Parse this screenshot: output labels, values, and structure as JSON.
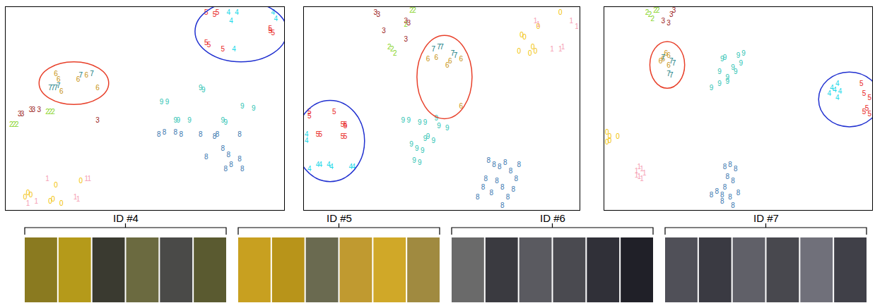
{
  "chart_data": [
    {
      "type": "scatter",
      "marker": "text",
      "tick_labels": false,
      "grid": false,
      "xlim": [
        0,
        100
      ],
      "ylim": [
        0,
        100
      ],
      "series": [
        {
          "name": "0",
          "color": "#f2c200",
          "x": [
            7,
            8,
            9,
            18,
            16,
            17,
            27,
            20
          ],
          "y": [
            6,
            8,
            7,
            12,
            4,
            5,
            14,
            3
          ]
        },
        {
          "name": "1",
          "color": "#f5a0b4",
          "x": [
            8,
            15,
            25,
            26,
            29,
            30,
            11
          ],
          "y": [
            3,
            15,
            6,
            5,
            15,
            15,
            4
          ]
        },
        {
          "name": "2",
          "color": "#88d42a",
          "x": [
            2,
            3,
            4,
            15,
            16,
            17
          ],
          "y": [
            42,
            42,
            42,
            48,
            48,
            48
          ]
        },
        {
          "name": "3",
          "color": "#9b1c1c",
          "x": [
            5,
            6,
            9,
            10,
            12,
            33
          ],
          "y": [
            47,
            47,
            49,
            49,
            49,
            44
          ]
        },
        {
          "name": "4",
          "color": "#1ad8e8",
          "x": [
            80,
            83,
            81,
            82,
            96,
            97
          ],
          "y": [
            97,
            97,
            93,
            79,
            97,
            94
          ]
        },
        {
          "name": "5",
          "color": "#e81c1c",
          "x": [
            72,
            73,
            95,
            96,
            72,
            75,
            76,
            78,
            95
          ],
          "y": [
            82,
            81,
            88,
            87,
            97,
            96,
            97,
            79,
            89
          ]
        },
        {
          "name": "6",
          "color": "#c89414",
          "x": [
            18,
            19,
            26,
            20,
            33,
            29
          ],
          "y": [
            67,
            64,
            64,
            58,
            60,
            66
          ]
        },
        {
          "name": "7",
          "color": "#0f7a80",
          "x": [
            17,
            16,
            18,
            19,
            27,
            31
          ],
          "y": [
            60,
            60,
            60,
            61,
            66,
            67
          ]
        },
        {
          "name": "8",
          "color": "#3a78b0",
          "x": [
            55,
            57,
            61,
            63,
            70,
            75,
            76,
            84,
            72,
            80,
            81,
            84,
            85,
            79,
            78
          ],
          "y": [
            37,
            38,
            38,
            37,
            37,
            36,
            37,
            37,
            26,
            27,
            22,
            25,
            20,
            20,
            30
          ]
        },
        {
          "name": "9",
          "color": "#2ec4b4",
          "x": [
            56,
            58,
            61,
            62,
            70,
            71,
            78,
            79,
            85,
            89,
            66
          ],
          "y": [
            53,
            53,
            44,
            44,
            60,
            59,
            44,
            43,
            51,
            50,
            44
          ]
        }
      ]
    },
    {
      "type": "scatter",
      "marker": "text",
      "tick_labels": false,
      "grid": false,
      "xlim": [
        0,
        100
      ],
      "ylim": [
        0,
        100
      ],
      "series": [
        {
          "name": "0",
          "color": "#f2c200",
          "x": [
            79,
            80,
            83,
            78,
            82,
            84,
            93,
            85
          ],
          "y": [
            86,
            85,
            80,
            78,
            77,
            78,
            97,
            90
          ]
        },
        {
          "name": "1",
          "color": "#f5a0b4",
          "x": [
            84,
            85,
            93,
            94,
            97,
            99,
            90
          ],
          "y": [
            93,
            91,
            79,
            80,
            93,
            90,
            79
          ]
        },
        {
          "name": "2",
          "color": "#88d42a",
          "x": [
            39,
            40,
            37,
            31,
            32,
            33
          ],
          "y": [
            98,
            98,
            91,
            80,
            79,
            77
          ]
        },
        {
          "name": "3",
          "color": "#9b1c1c",
          "x": [
            26,
            27,
            37,
            38,
            29,
            37
          ],
          "y": [
            97,
            96,
            93,
            92,
            88,
            84
          ]
        },
        {
          "name": "4",
          "color": "#1ad8e8",
          "x": [
            1,
            1,
            5,
            6,
            9,
            10,
            17,
            18,
            2
          ],
          "y": [
            37,
            34,
            22,
            22,
            22,
            21,
            21,
            21,
            20
          ]
        },
        {
          "name": "5",
          "color": "#e81c1c",
          "x": [
            2,
            2,
            11,
            14,
            15,
            15,
            5,
            6,
            15,
            14
          ],
          "y": [
            48,
            46,
            48,
            42,
            42,
            41,
            37,
            37,
            36,
            36
          ]
        },
        {
          "name": "6",
          "color": "#c89414",
          "x": [
            45,
            48,
            53,
            57,
            52,
            57
          ],
          "y": [
            74,
            75,
            73,
            74,
            71,
            51
          ]
        },
        {
          "name": "7",
          "color": "#0f7a80",
          "x": [
            49,
            50,
            54,
            55,
            47
          ],
          "y": [
            80,
            80,
            77,
            76,
            79
          ]
        },
        {
          "name": "8",
          "color": "#3a78b0",
          "x": [
            67,
            69,
            71,
            66,
            70,
            72,
            77,
            76,
            74,
            68,
            65,
            63,
            73,
            78,
            75,
            72
          ],
          "y": [
            24,
            22,
            21,
            15,
            14,
            11,
            15,
            10,
            6,
            8,
            11,
            6,
            23,
            22,
            19,
            2
          ]
        },
        {
          "name": "9",
          "color": "#2ec4b4",
          "x": [
            36,
            38,
            42,
            44,
            48,
            49,
            52,
            45,
            47,
            44,
            39,
            41,
            43,
            40,
            42
          ],
          "y": [
            44,
            44,
            43,
            43,
            45,
            41,
            40,
            36,
            34,
            35,
            32,
            30,
            29,
            24,
            23
          ]
        }
      ]
    },
    {
      "type": "scatter",
      "marker": "text",
      "tick_labels": false,
      "grid": false,
      "xlim": [
        0,
        100
      ],
      "ylim": [
        0,
        100
      ],
      "series": [
        {
          "name": "0",
          "color": "#f2c200",
          "x": [
            1,
            2,
            2,
            5,
            1
          ],
          "y": [
            38,
            36,
            34,
            36,
            33
          ]
        },
        {
          "name": "1",
          "color": "#f5a0b4",
          "x": [
            13,
            14,
            12,
            15,
            14,
            13,
            12
          ],
          "y": [
            21,
            20,
            19,
            18,
            15,
            16,
            17
          ]
        },
        {
          "name": "2",
          "color": "#88d42a",
          "x": [
            16,
            17,
            18,
            19,
            20
          ],
          "y": [
            97,
            96,
            94,
            98,
            98
          ]
        },
        {
          "name": "3",
          "color": "#9b1c1c",
          "x": [
            25,
            26,
            22,
            24
          ],
          "y": [
            96,
            98,
            93,
            92
          ]
        },
        {
          "name": "4",
          "color": "#1ad8e8",
          "x": [
            85,
            86,
            87,
            88,
            84,
            87
          ],
          "y": [
            60,
            59,
            62,
            58,
            57,
            55
          ]
        },
        {
          "name": "5",
          "color": "#e81c1c",
          "x": [
            96,
            97,
            99,
            98,
            99,
            97
          ],
          "y": [
            62,
            57,
            55,
            50,
            47,
            48
          ]
        },
        {
          "name": "6",
          "color": "#c89414",
          "x": [
            23,
            24,
            22,
            24,
            21
          ],
          "y": [
            77,
            76,
            74,
            71,
            73
          ]
        },
        {
          "name": "7",
          "color": "#0f7a80",
          "x": [
            25,
            26,
            24,
            25,
            22
          ],
          "y": [
            73,
            72,
            67,
            66,
            75
          ]
        },
        {
          "name": "8",
          "color": "#3a78b0",
          "x": [
            45,
            47,
            49,
            46,
            48,
            45,
            42,
            44,
            47,
            50,
            44,
            48,
            40
          ],
          "y": [
            21,
            22,
            20,
            16,
            14,
            11,
            9,
            7,
            6,
            8,
            4,
            2,
            7
          ]
        },
        {
          "name": "9",
          "color": "#2ec4b4",
          "x": [
            44,
            45,
            50,
            52,
            48,
            43,
            46,
            43,
            40,
            46,
            51,
            49
          ],
          "y": [
            74,
            75,
            76,
            77,
            70,
            68,
            65,
            62,
            60,
            63,
            72,
            68
          ]
        }
      ]
    }
  ],
  "highlights": [
    {
      "series": [
        "6",
        "7"
      ],
      "color": "#e8402a"
    },
    {
      "series": [
        "4",
        "5"
      ],
      "color": "#2030d0"
    }
  ],
  "strip": [
    {
      "label": "ID #4"
    },
    {
      "label": "ID #5"
    },
    {
      "label": "ID #6"
    },
    {
      "label": "ID #7"
    }
  ]
}
